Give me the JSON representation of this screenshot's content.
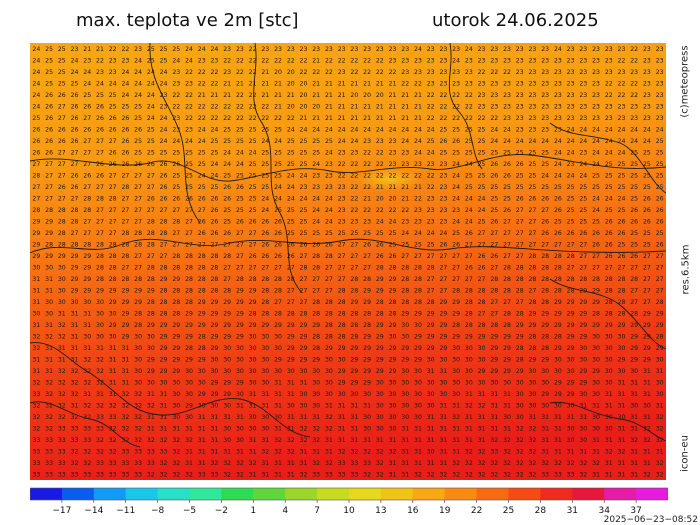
{
  "header": {
    "title_left": "max. teplota ve 2m [stc]",
    "title_right": "utorok 24.06.2025"
  },
  "side_labels": {
    "credit": "(c)meteopress",
    "resolution": "res.6.5km",
    "model": "icon-eu"
  },
  "run_stamp": "2025−06−23−08:52",
  "map": {
    "grid_cols": 50,
    "grid_rows": 38,
    "first_rows": [
      "24 25 25 23 21 21 22 22 23 25 25 25 24 24 24 23 23 22 23 23 23 23 23 23 23 23 23 23 23 23 24 23 23 23 24 23 23 23 23 23 23 24 23 23 23 23 23 22 23 23",
      "24 25 25 24 23 22 23 23 24 25 25 24 24 23 23 22 22 22 22 22 22 22 21 22 22 22 22 22 23 23 23 23 23 24 23 23 23 23 23 23 23 23 23 23 23 23 22 22 23 23",
      "24 25 25 24 24 23 23 24 24 24 24 23 22 22 22 23 22 22 21 20 20 22 22 22 23 22 22 22 22 23 23 23 23 23 23 22 22 22 23 23 23 23 23 23 23 23 23 23 23 23",
      "24 25 25 25 24 24 24 24 24 24 24 23 23 22 22 21 21 21 21 21 20 20 21 21 21 21 21 21 21 22 22 23 23 23 23 23 23 23 23 23 23 23 23 23 23 22 22 22 23 23",
      "24 26 26 26 25 25 25 24 24 24 23 22 22 21 21 21 22 22 21 21 21 20 21 21 21 20 20 20 21 21 21 22 22 22 22 23 23 23 23 23 23 23 23 23 23 22 22 22 23 23",
      "24 26 27 26 26 26 25 25 25 24 23 22 22 22 22 22 22 22 22 21 20 20 20 21 21 21 21 21 21 21 21 22 22 22 22 23 23 23 23 23 23 23 23 23 23 23 23 23 23 23",
      "25 26 27 26 27 26 26 26 25 24 24 23 22 22 22 22 22 22 22 22 22 21 21 21 21 21 21 21 21 21 21 22 22 22 22 22 22 23 23 23 23 23 23 23 23 23 23 23 23 23"
    ],
    "colorbar": {
      "ticks": [
        "-17",
        "-14",
        "-11",
        "-8",
        "-5",
        "-2",
        "1",
        "4",
        "7",
        "10",
        "13",
        "16",
        "19",
        "22",
        "25",
        "28",
        "31",
        "34",
        "37"
      ],
      "stops": [
        "#1a1ae6",
        "#0a5cf0",
        "#0f9cf5",
        "#19c8e8",
        "#26e0c8",
        "#2fe89a",
        "#2ddc55",
        "#5fd63a",
        "#9cd62a",
        "#c8dc1e",
        "#e6d81a",
        "#f0c414",
        "#f7a812",
        "#fb8b10",
        "#fb6a10",
        "#f84a14",
        "#f02a1e",
        "#e8163c",
        "#e81aa8",
        "#e81ae0"
      ]
    }
  }
}
